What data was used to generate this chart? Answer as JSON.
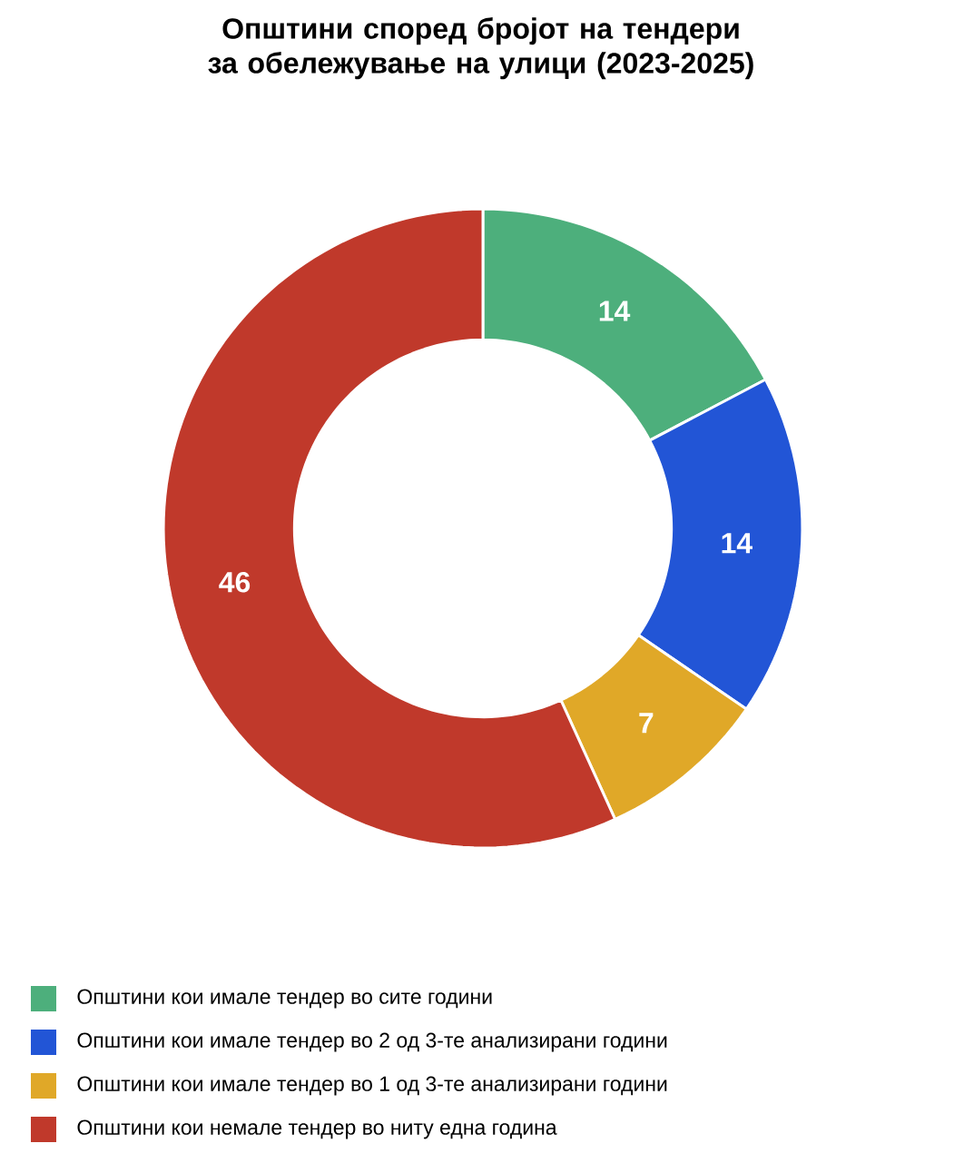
{
  "chart_data": {
    "type": "donut",
    "title": "Општини според бројот на тендери за обележување на улици (2023-2025)",
    "categories": [
      "Општини кои имале тендер во сите години",
      "Општини кои имале тендер во 2 од 3-те анализирани години",
      "Општини кои имале тендер во 1 од 3-те анализирани години",
      "Општини кои немале тендер во ниту една година"
    ],
    "values": [
      14,
      14,
      7,
      46
    ],
    "colors": [
      "#4daf7c",
      "#2255d6",
      "#e0a828",
      "#c0392b"
    ],
    "data_labels": true,
    "legend": "bottom"
  }
}
